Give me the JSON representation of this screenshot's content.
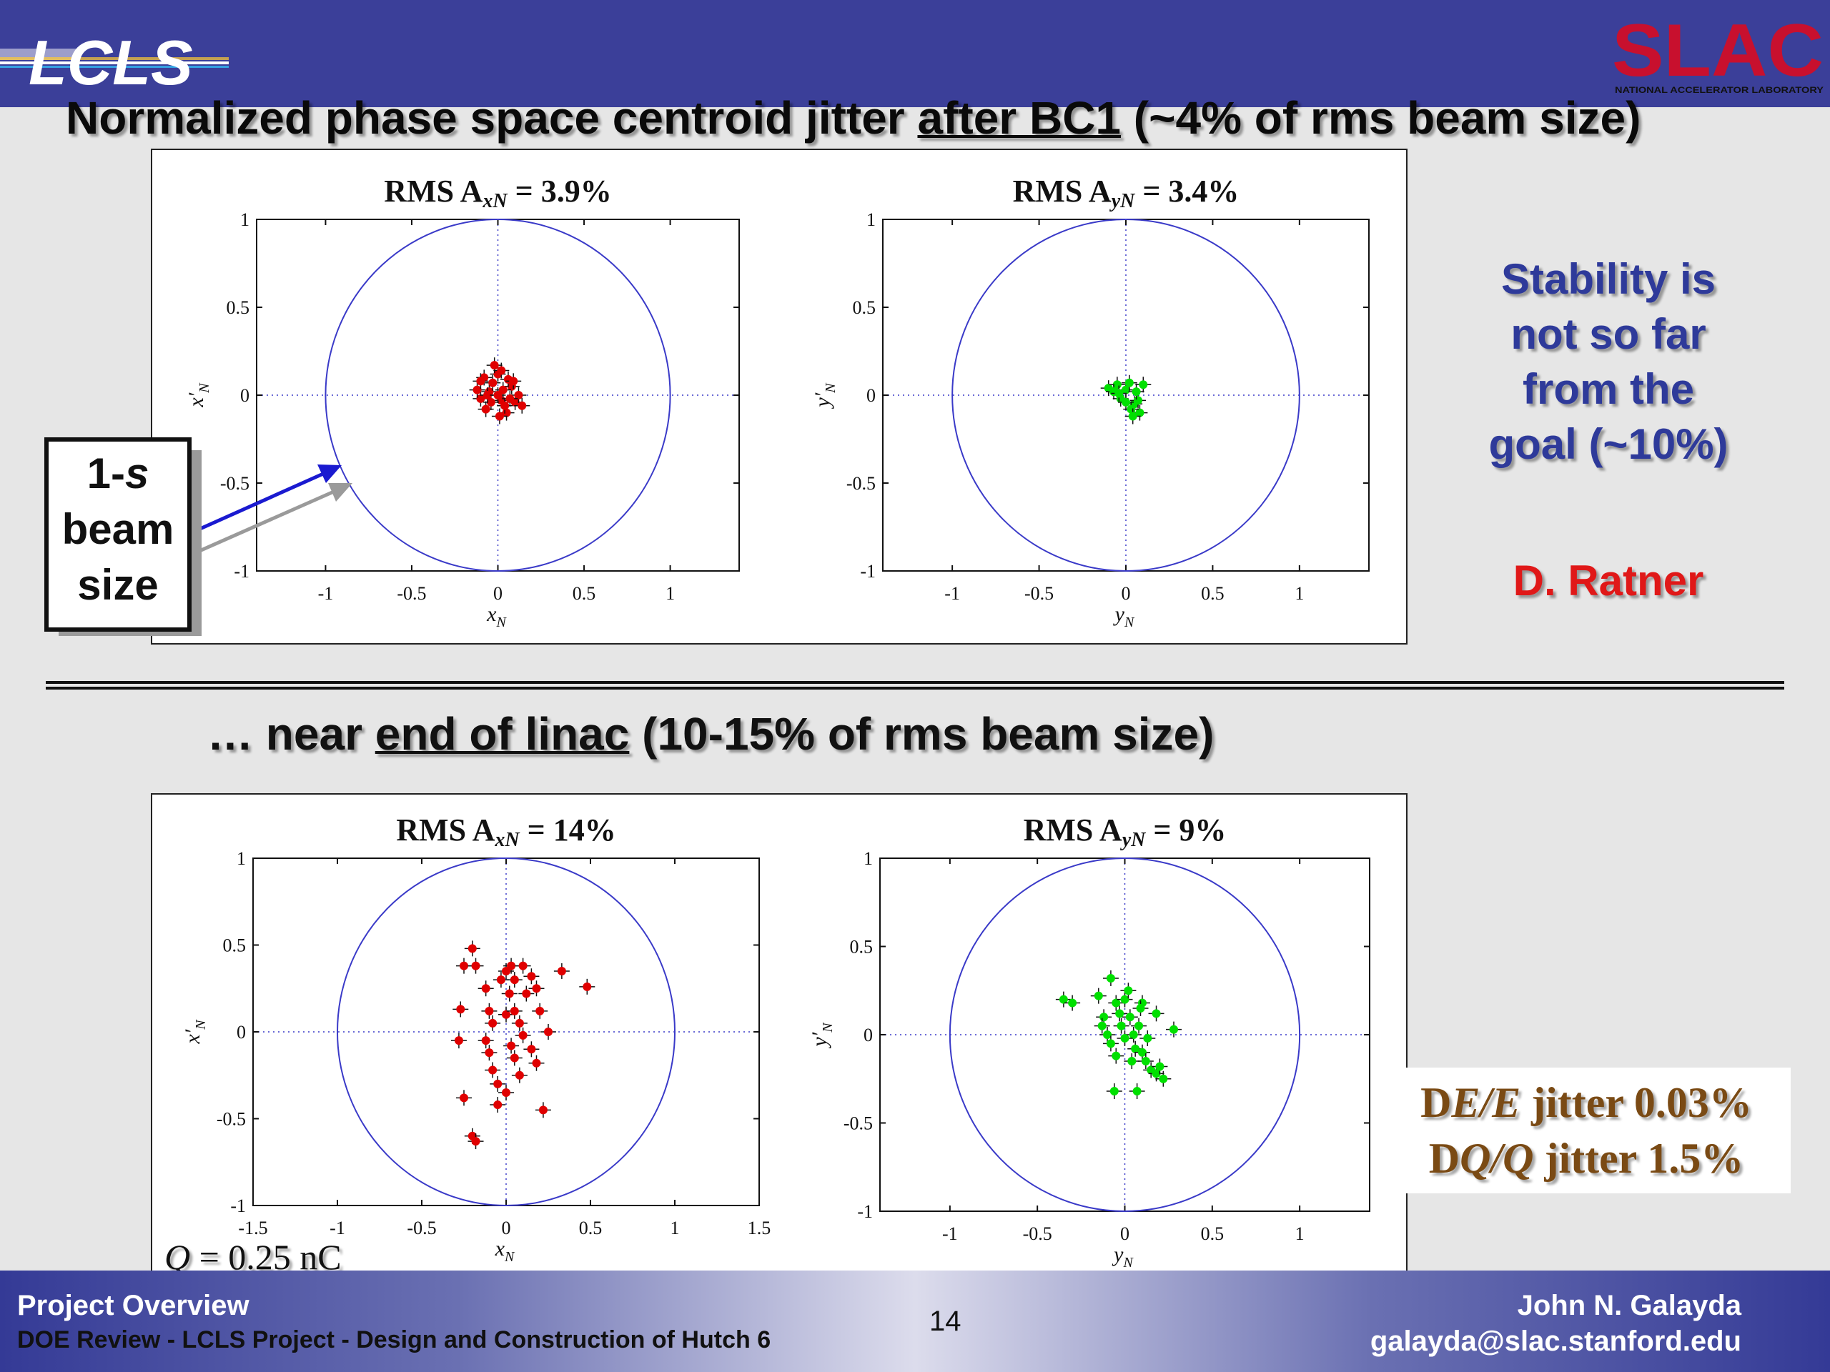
{
  "header": {
    "lcls_logo_text": "LCLS",
    "slac_logo_text": "SLAC",
    "slac_logo_subtext": "NATIONAL ACCELERATOR LABORATORY"
  },
  "title": {
    "part1": "Normalized phase space centroid jitter ",
    "underlined": "after BC1",
    "part2": " (~4% of rms beam size)"
  },
  "section2": {
    "part1": "… near ",
    "underlined": "end of linac",
    "part2": " (10-15% of rms beam size)"
  },
  "beam_box": {
    "line1_prefix": "1-",
    "line1_symbol": "s",
    "line2": "beam",
    "line3": "size"
  },
  "notes": {
    "stability": [
      "Stability is",
      "not so far",
      "from the",
      "goal (~10%)"
    ],
    "author": "D. Ratner"
  },
  "jitter_box": {
    "line1": {
      "prefix": "D",
      "var": "E/E",
      "rest": " jitter  0.03%"
    },
    "line2": {
      "prefix": "D",
      "var": "Q/Q",
      "rest": " jitter  1.5%"
    }
  },
  "charge_label": {
    "var": "Q",
    "rest": " = 0.25 nC"
  },
  "footer": {
    "title": "Project Overview",
    "subtitle": "DOE Review - LCLS Project - Design and Construction of Hutch 6",
    "page": "14",
    "name": "John N. Galayda",
    "email": "galayda@slac.stanford.edu"
  },
  "colors": {
    "header": "#3b3f99",
    "circle": "#3a3ac8",
    "x_points": "#e00000",
    "y_points": "#00e000"
  },
  "chart_data": [
    {
      "type": "scatter",
      "id": "top-left",
      "title": "RMS A",
      "title_sub": "xN",
      "title_rest": " = 3.9%",
      "xlabel": "x",
      "xlabel_sub": "N",
      "ylabel": "x′",
      "ylabel_sub": "N",
      "xlim": [
        -1.4,
        1.4
      ],
      "ylim": [
        -1,
        1
      ],
      "xticks": [
        -1,
        -0.5,
        0,
        0.5,
        1
      ],
      "yticks": [
        -1,
        -0.5,
        0,
        0.5,
        1
      ],
      "tick_labels_x": [
        "-1",
        "-0.5",
        "0",
        "0.5",
        "1"
      ],
      "tick_labels_y": [
        "-1",
        "-0.5",
        "0",
        "0.5",
        "1"
      ],
      "color": "#e00000",
      "circle_radius": 1,
      "points": [
        [
          -0.05,
          0.02
        ],
        [
          0.02,
          -0.03
        ],
        [
          0.08,
          0.05
        ],
        [
          -0.1,
          -0.02
        ],
        [
          0.0,
          0.12
        ],
        [
          0.05,
          -0.1
        ],
        [
          -0.03,
          0.07
        ],
        [
          0.1,
          -0.04
        ],
        [
          -0.07,
          -0.08
        ],
        [
          0.03,
          0.03
        ],
        [
          -0.12,
          0.03
        ],
        [
          0.12,
          0.0
        ],
        [
          0.01,
          -0.12
        ],
        [
          -0.02,
          0.17
        ],
        [
          0.06,
          0.09
        ],
        [
          -0.08,
          0.1
        ],
        [
          0.04,
          -0.06
        ],
        [
          -0.04,
          -0.04
        ],
        [
          0.09,
          0.08
        ],
        [
          -0.06,
          0.0
        ],
        [
          0.14,
          -0.06
        ],
        [
          0.0,
          0.0
        ],
        [
          -0.1,
          0.08
        ],
        [
          0.07,
          -0.02
        ],
        [
          0.02,
          0.14
        ]
      ]
    },
    {
      "type": "scatter",
      "id": "top-right",
      "title": "RMS A",
      "title_sub": "yN",
      "title_rest": " = 3.4%",
      "xlabel": "y",
      "xlabel_sub": "N",
      "ylabel": "y′",
      "ylabel_sub": "N",
      "xlim": [
        -1.4,
        1.4
      ],
      "ylim": [
        -1,
        1
      ],
      "xticks": [
        -1,
        -0.5,
        0,
        0.5,
        1
      ],
      "yticks": [
        -1,
        -0.5,
        0,
        0.5,
        1
      ],
      "tick_labels_x": [
        "-1",
        "-0.5",
        "0",
        "0.5",
        "1"
      ],
      "tick_labels_y": [
        "-1",
        "-0.5",
        "0",
        "0.5",
        "1"
      ],
      "color": "#00e000",
      "circle_radius": 1,
      "points": [
        [
          -0.1,
          0.04
        ],
        [
          -0.05,
          0.06
        ],
        [
          0.0,
          0.03
        ],
        [
          0.05,
          -0.05
        ],
        [
          0.08,
          -0.1
        ],
        [
          -0.03,
          -0.02
        ],
        [
          0.02,
          0.07
        ],
        [
          0.07,
          -0.03
        ],
        [
          -0.07,
          0.02
        ],
        [
          0.03,
          -0.08
        ],
        [
          0.1,
          0.06
        ],
        [
          0.0,
          -0.04
        ],
        [
          -0.04,
          0.01
        ],
        [
          0.06,
          0.02
        ],
        [
          0.04,
          -0.12
        ]
      ]
    },
    {
      "type": "scatter",
      "id": "bottom-left",
      "title": "RMS A",
      "title_sub": "xN",
      "title_rest": " = 14%",
      "xlabel": "x",
      "xlabel_sub": "N",
      "ylabel": "x′",
      "ylabel_sub": "N",
      "xlim": [
        -1.5,
        1.5
      ],
      "ylim": [
        -1,
        1
      ],
      "xticks": [
        -1.5,
        -1,
        -0.5,
        0,
        0.5,
        1,
        1.5
      ],
      "yticks": [
        -1,
        -0.5,
        0,
        0.5,
        1
      ],
      "tick_labels_x": [
        "-1.5",
        "-1",
        "-0.5",
        "0",
        "0.5",
        "1",
        "1.5"
      ],
      "tick_labels_y": [
        "-1",
        "-0.5",
        "0",
        "0.5",
        "1"
      ],
      "color": "#e00000",
      "circle_radius": 1,
      "points": [
        [
          -0.2,
          0.48
        ],
        [
          -0.25,
          0.38
        ],
        [
          -0.18,
          0.38
        ],
        [
          -0.27,
          0.13
        ],
        [
          -0.28,
          -0.05
        ],
        [
          -0.25,
          -0.38
        ],
        [
          -0.2,
          -0.6
        ],
        [
          -0.18,
          -0.63
        ],
        [
          -0.12,
          0.25
        ],
        [
          -0.1,
          0.12
        ],
        [
          -0.08,
          0.05
        ],
        [
          -0.12,
          -0.05
        ],
        [
          -0.1,
          -0.12
        ],
        [
          -0.08,
          -0.22
        ],
        [
          -0.05,
          -0.3
        ],
        [
          -0.03,
          0.3
        ],
        [
          0.0,
          0.35
        ],
        [
          0.03,
          0.38
        ],
        [
          0.05,
          0.3
        ],
        [
          0.02,
          0.22
        ],
        [
          0.0,
          0.1
        ],
        [
          0.05,
          0.12
        ],
        [
          0.08,
          0.05
        ],
        [
          0.1,
          -0.02
        ],
        [
          0.03,
          -0.08
        ],
        [
          0.05,
          -0.15
        ],
        [
          0.08,
          -0.25
        ],
        [
          0.0,
          -0.35
        ],
        [
          0.12,
          0.22
        ],
        [
          0.15,
          0.32
        ],
        [
          0.18,
          0.25
        ],
        [
          0.2,
          0.12
        ],
        [
          0.15,
          -0.1
        ],
        [
          0.18,
          -0.18
        ],
        [
          0.22,
          -0.45
        ],
        [
          0.33,
          0.35
        ],
        [
          0.48,
          0.26
        ],
        [
          0.25,
          0.0
        ],
        [
          0.1,
          0.38
        ],
        [
          -0.05,
          -0.42
        ]
      ]
    },
    {
      "type": "scatter",
      "id": "bottom-right",
      "title": "RMS A",
      "title_sub": "yN",
      "title_rest": " = 9%",
      "xlabel": "y",
      "xlabel_sub": "N",
      "ylabel": "y′",
      "ylabel_sub": "N",
      "xlim": [
        -1.4,
        1.4
      ],
      "ylim": [
        -1,
        1
      ],
      "xticks": [
        -1,
        -0.5,
        0,
        0.5,
        1
      ],
      "yticks": [
        -1,
        -0.5,
        0,
        0.5,
        1
      ],
      "tick_labels_x": [
        "-1",
        "-0.5",
        "0",
        "0.5",
        "1"
      ],
      "tick_labels_y": [
        "-1",
        "-0.5",
        "0",
        "0.5",
        "1"
      ],
      "color": "#00e000",
      "circle_radius": 1,
      "points": [
        [
          -0.35,
          0.2
        ],
        [
          -0.3,
          0.18
        ],
        [
          -0.15,
          0.22
        ],
        [
          -0.12,
          0.1
        ],
        [
          -0.08,
          0.32
        ],
        [
          -0.05,
          0.18
        ],
        [
          -0.1,
          0.0
        ],
        [
          -0.08,
          -0.05
        ],
        [
          -0.05,
          -0.12
        ],
        [
          -0.02,
          0.05
        ],
        [
          0.0,
          0.2
        ],
        [
          0.02,
          0.25
        ],
        [
          0.03,
          0.1
        ],
        [
          0.05,
          0.0
        ],
        [
          0.06,
          -0.08
        ],
        [
          0.08,
          0.05
        ],
        [
          0.1,
          -0.1
        ],
        [
          0.12,
          -0.15
        ],
        [
          0.15,
          -0.2
        ],
        [
          0.18,
          -0.22
        ],
        [
          0.2,
          -0.18
        ],
        [
          0.22,
          -0.25
        ],
        [
          0.28,
          0.03
        ],
        [
          0.18,
          0.12
        ],
        [
          0.1,
          0.18
        ],
        [
          -0.06,
          -0.32
        ],
        [
          0.07,
          -0.32
        ],
        [
          0.0,
          -0.02
        ],
        [
          -0.03,
          0.12
        ],
        [
          0.04,
          -0.15
        ],
        [
          0.13,
          -0.02
        ],
        [
          -0.13,
          0.05
        ],
        [
          0.09,
          0.15
        ]
      ]
    }
  ]
}
